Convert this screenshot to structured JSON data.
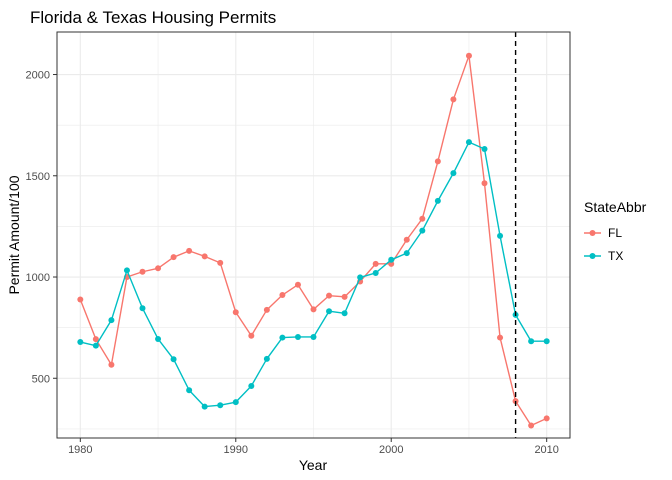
{
  "chart_data": {
    "type": "line",
    "title": "Florida & Texas Housing Permits",
    "xlabel": "Year",
    "ylabel": "Permit Amount/100",
    "xlim": [
      1978.5,
      2011.5
    ],
    "ylim": [
      205,
      2210
    ],
    "x_ticks": [
      1980,
      1990,
      2000,
      2010
    ],
    "y_ticks": [
      500,
      1000,
      1500,
      2000
    ],
    "x_tick_labels": [
      "1980",
      "1990",
      "2000",
      "2010"
    ],
    "y_tick_labels": [
      "500",
      "1000",
      "1500",
      "2000"
    ],
    "grid": true,
    "legend": {
      "title": "StateAbbr",
      "position": "right"
    },
    "vline": {
      "x": 2008,
      "style": "dashed",
      "color": "#000000"
    },
    "x": [
      1980,
      1981,
      1982,
      1983,
      1984,
      1985,
      1986,
      1987,
      1988,
      1989,
      1990,
      1991,
      1992,
      1993,
      1994,
      1995,
      1996,
      1997,
      1998,
      1999,
      2000,
      2001,
      2002,
      2003,
      2004,
      2005,
      2006,
      2007,
      2008,
      2009,
      2010
    ],
    "series": [
      {
        "name": "FL",
        "color": "#F8766D",
        "values": [
          889,
          693,
          567,
          1000,
          1026,
          1043,
          1098,
          1129,
          1102,
          1070,
          826,
          710,
          838,
          911,
          962,
          840,
          908,
          902,
          978,
          1065,
          1065,
          1184,
          1288,
          1571,
          1877,
          2093,
          1463,
          701,
          387,
          267,
          302
        ]
      },
      {
        "name": "TX",
        "color": "#00BFC4",
        "values": [
          679,
          661,
          787,
          1033,
          846,
          694,
          594,
          441,
          360,
          367,
          382,
          462,
          596,
          701,
          704,
          704,
          831,
          821,
          998,
          1020,
          1085,
          1118,
          1229,
          1376,
          1513,
          1666,
          1632,
          1203,
          813,
          683,
          683
        ]
      }
    ]
  }
}
